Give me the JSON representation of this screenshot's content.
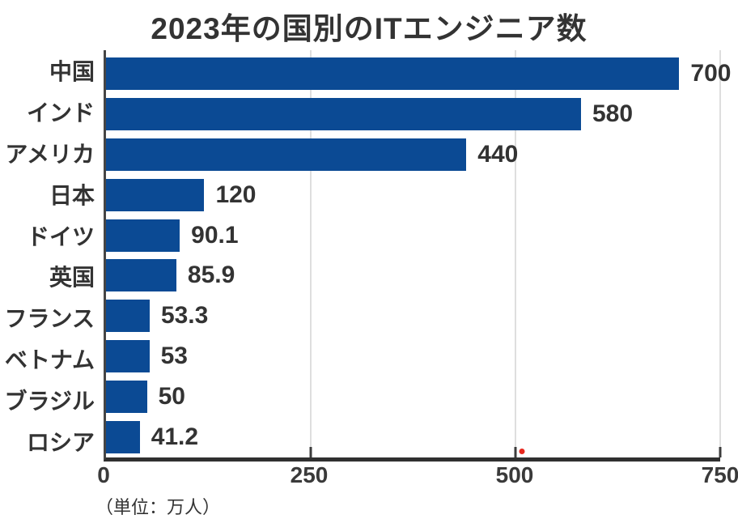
{
  "chart_data": {
    "type": "bar",
    "orientation": "horizontal",
    "title": "2023年の国別のITエンジニア数",
    "categories": [
      "中国",
      "インド",
      "アメリカ",
      "日本",
      "ドイツ",
      "英国",
      "フランス",
      "ベトナム",
      "ブラジル",
      "ロシア"
    ],
    "values": [
      700,
      580,
      440,
      120,
      90.1,
      85.9,
      53.3,
      53,
      50,
      41.2
    ],
    "value_labels": [
      "700",
      "580",
      "440",
      "120",
      "90.1",
      "85.9",
      "53.3",
      "53",
      "50",
      "41.2"
    ],
    "xlim": [
      0,
      750
    ],
    "x_ticks": [
      0,
      250,
      500,
      750
    ],
    "x_tick_labels": [
      "0",
      "250",
      "500",
      "750"
    ],
    "unit_note": "（単位：万人）",
    "xlabel": "",
    "ylabel": "",
    "grid": "vertical-light-gridlines-at-ticks",
    "legend": "none",
    "bar_color": "#0b4a94",
    "gridline_color": "#dedede",
    "axis_color": "#3c3c3c",
    "text_color": "#333333",
    "red_marker": {
      "x_value": 508,
      "color": "#e8281e"
    }
  }
}
